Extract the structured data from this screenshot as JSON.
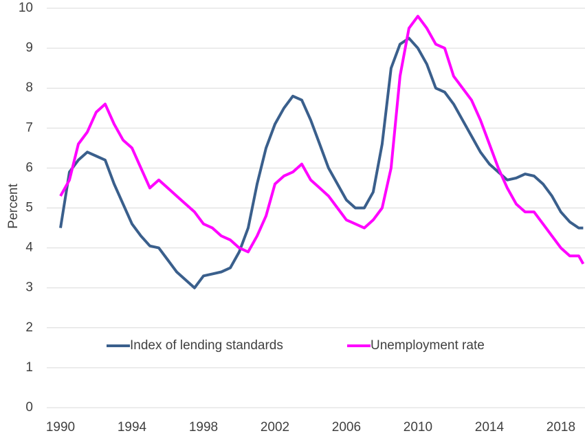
{
  "chart_data": {
    "type": "line",
    "y_label": "Percent",
    "x": [
      1990,
      1990.5,
      1991,
      1991.5,
      1992,
      1992.5,
      1993,
      1993.5,
      1994,
      1994.5,
      1995,
      1995.5,
      1996,
      1996.5,
      1997,
      1997.5,
      1998,
      1998.5,
      1999,
      1999.5,
      2000,
      2000.5,
      2001,
      2001.5,
      2002,
      2002.5,
      2003,
      2003.5,
      2004,
      2004.5,
      2005,
      2005.5,
      2006,
      2006.5,
      2007,
      2007.5,
      2008,
      2008.5,
      2009,
      2009.5,
      2010,
      2010.5,
      2011,
      2011.5,
      2012,
      2012.5,
      2013,
      2013.5,
      2014,
      2014.5,
      2015,
      2015.5,
      2016,
      2016.5,
      2017,
      2017.5,
      2018,
      2018.5,
      2019,
      2019.25
    ],
    "series": [
      {
        "name": "Index of lending standards",
        "color": "#3a5f8c",
        "values": [
          4.5,
          5.9,
          6.2,
          6.4,
          6.3,
          6.2,
          5.6,
          5.1,
          4.6,
          4.3,
          4.05,
          4.0,
          3.7,
          3.4,
          3.2,
          3.0,
          3.3,
          3.35,
          3.4,
          3.5,
          3.9,
          4.5,
          5.6,
          6.5,
          7.1,
          7.5,
          7.8,
          7.7,
          7.2,
          6.6,
          6.0,
          5.6,
          5.2,
          5.0,
          5.0,
          5.4,
          6.6,
          8.5,
          9.1,
          9.25,
          9.0,
          8.6,
          8.0,
          7.9,
          7.6,
          7.2,
          6.8,
          6.4,
          6.1,
          5.9,
          5.7,
          5.75,
          5.85,
          5.8,
          5.6,
          5.3,
          4.9,
          4.65,
          4.5,
          4.5
        ]
      },
      {
        "name": "Unemployment rate",
        "color": "#ff00ff",
        "values": [
          5.3,
          5.7,
          6.6,
          6.9,
          7.4,
          7.6,
          7.1,
          6.7,
          6.5,
          6.0,
          5.5,
          5.7,
          5.5,
          5.3,
          5.1,
          4.9,
          4.6,
          4.5,
          4.3,
          4.2,
          4.0,
          3.9,
          4.3,
          4.8,
          5.6,
          5.8,
          5.9,
          6.1,
          5.7,
          5.5,
          5.3,
          5.0,
          4.7,
          4.6,
          4.5,
          4.7,
          5.0,
          6.0,
          8.3,
          9.5,
          9.8,
          9.5,
          9.1,
          9.0,
          8.3,
          8.0,
          7.7,
          7.2,
          6.6,
          6.0,
          5.5,
          5.1,
          4.9,
          4.9,
          4.6,
          4.3,
          4.0,
          3.8,
          3.8,
          3.6
        ]
      }
    ],
    "xlim": [
      1990,
      2019.35
    ],
    "xticks": [
      1990,
      1994,
      1998,
      2002,
      2006,
      2010,
      2014,
      2018
    ],
    "ylim": [
      0,
      10
    ],
    "yticks": [
      0,
      1,
      2,
      3,
      4,
      5,
      6,
      7,
      8,
      9,
      10
    ],
    "grid": true,
    "legend": "bottom"
  }
}
